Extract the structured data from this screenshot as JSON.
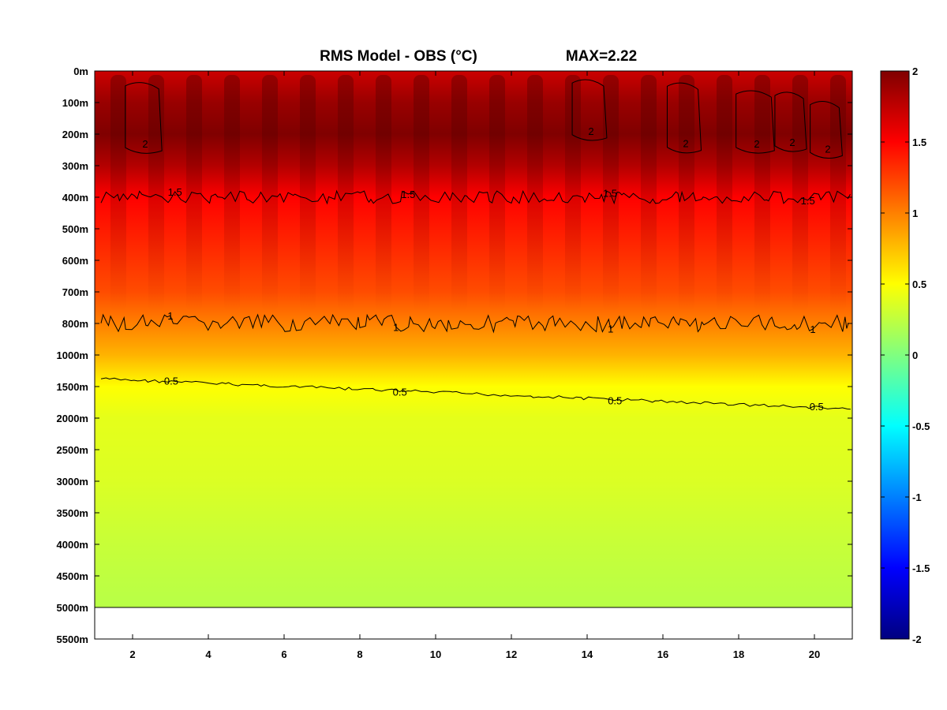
{
  "chart_data": {
    "type": "heatmap",
    "title": "RMS Model - OBS (°C)",
    "annotation": "MAX=2.22",
    "x_ticks": [
      2,
      4,
      6,
      8,
      10,
      12,
      14,
      16,
      18,
      20
    ],
    "xlim": [
      1,
      21
    ],
    "y_ticks": [
      "0m",
      "100m",
      "200m",
      "300m",
      "400m",
      "500m",
      "600m",
      "700m",
      "800m",
      "1000m",
      "1500m",
      "2000m",
      "2500m",
      "3000m",
      "3500m",
      "4000m",
      "4500m",
      "5000m",
      "5500m"
    ],
    "colorbar": {
      "range": [
        -2,
        2
      ],
      "ticks": [
        2,
        1.5,
        1,
        0.5,
        0,
        -0.5,
        -1,
        -1.5,
        -2
      ],
      "tick_labels": [
        "2",
        "1.5",
        "1",
        "0.5",
        "0",
        "-0.5",
        "-1",
        "-1.5",
        "-2"
      ],
      "colormap": "jet"
    },
    "depth_profile": [
      {
        "depth": "0m",
        "value": 1.7
      },
      {
        "depth": "100m",
        "value": 1.9
      },
      {
        "depth": "200m",
        "value": 2.0
      },
      {
        "depth": "300m",
        "value": 1.8
      },
      {
        "depth": "400m",
        "value": 1.5
      },
      {
        "depth": "500m",
        "value": 1.4
      },
      {
        "depth": "600m",
        "value": 1.3
      },
      {
        "depth": "700m",
        "value": 1.2
      },
      {
        "depth": "800m",
        "value": 1.0
      },
      {
        "depth": "1000m",
        "value": 0.8
      },
      {
        "depth": "1500m",
        "value": 0.5
      },
      {
        "depth": "2000m",
        "value": 0.4
      },
      {
        "depth": "2500m",
        "value": 0.38
      },
      {
        "depth": "3000m",
        "value": 0.36
      },
      {
        "depth": "3500m",
        "value": 0.32
      },
      {
        "depth": "4000m",
        "value": 0.28
      },
      {
        "depth": "4500m",
        "value": 0.25
      },
      {
        "depth": "5000m",
        "value": 0.22
      }
    ],
    "contour_labels": [
      "0.5",
      "1",
      "1.5",
      "2"
    ],
    "contour_levels": [
      0.5,
      1,
      1.5,
      2
    ]
  }
}
